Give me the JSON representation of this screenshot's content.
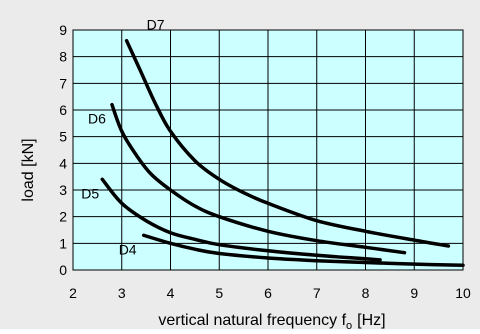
{
  "chart_data": {
    "type": "line",
    "title": "",
    "xlabel": "vertical natural frequency f",
    "xlabel_subscript": "o",
    "xlabel_unit": "[Hz]",
    "ylabel": "load [kN]",
    "xlim": [
      2,
      10
    ],
    "ylim": [
      0,
      9
    ],
    "x_ticks": [
      2,
      3,
      4,
      5,
      6,
      7,
      8,
      9,
      10
    ],
    "y_ticks": [
      0,
      1,
      2,
      3,
      4,
      5,
      6,
      7,
      8,
      9
    ],
    "x_tick_labels": [
      "2",
      "3",
      "4",
      "5",
      "6",
      "7",
      "8",
      "9",
      "10"
    ],
    "y_tick_labels": [
      "0",
      "1",
      "2",
      "3",
      "4",
      "5",
      "6",
      "7",
      "8",
      "9"
    ],
    "grid": true,
    "colors": {
      "figure_background": "#ebebeb",
      "plot_background": "#ccffff",
      "gridline": "#000000",
      "series": "#000000"
    },
    "series": [
      {
        "name": "D7",
        "x": [
          3.1,
          3.4,
          3.7,
          4.0,
          4.5,
          5.0,
          5.5,
          6.0,
          7.0,
          8.0,
          9.0,
          9.7
        ],
        "y": [
          8.6,
          7.4,
          6.2,
          5.2,
          4.1,
          3.4,
          2.9,
          2.5,
          1.85,
          1.45,
          1.12,
          0.9
        ]
      },
      {
        "name": "D6",
        "x": [
          2.8,
          3.0,
          3.3,
          3.6,
          4.0,
          4.5,
          5.0,
          6.0,
          7.0,
          8.0,
          8.8
        ],
        "y": [
          6.2,
          5.2,
          4.3,
          3.6,
          3.0,
          2.4,
          2.0,
          1.45,
          1.1,
          0.85,
          0.65
        ]
      },
      {
        "name": "D5",
        "x": [
          2.6,
          3.0,
          3.5,
          4.0,
          4.5,
          5.0,
          6.0,
          7.0,
          8.0,
          8.3
        ],
        "y": [
          3.4,
          2.5,
          1.85,
          1.4,
          1.15,
          0.95,
          0.72,
          0.55,
          0.42,
          0.38
        ]
      },
      {
        "name": "D4",
        "x": [
          3.45,
          4.0,
          4.5,
          5.0,
          6.0,
          7.0,
          8.0,
          9.0,
          10.0
        ],
        "y": [
          1.3,
          1.0,
          0.78,
          0.62,
          0.45,
          0.35,
          0.28,
          0.22,
          0.18
        ]
      }
    ]
  }
}
